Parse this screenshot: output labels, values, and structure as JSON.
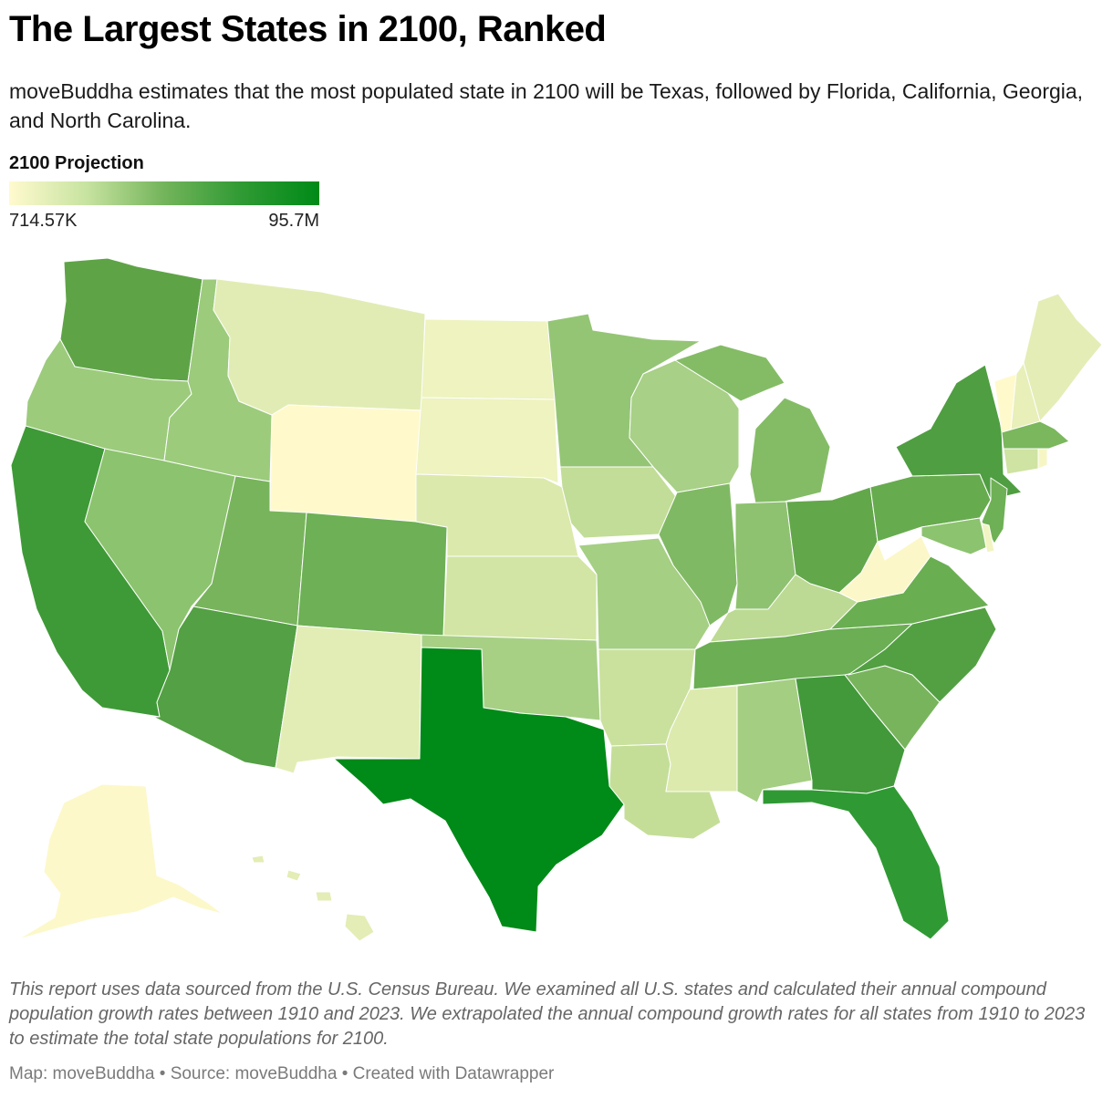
{
  "title": "The Largest States in 2100, Ranked",
  "subtitle": "moveBuddha estimates that the most populated state in 2100 will be Texas, followed by Florida, California, Georgia, and North Carolina.",
  "legend": {
    "title": "2100 Projection",
    "min_label": "714.57K",
    "max_label": "95.7M",
    "colors": [
      "#fffacf",
      "#c7e3a0",
      "#73b45a",
      "#2f9a33",
      "#008a17"
    ]
  },
  "notes": "This report uses data sourced from the U.S. Census Bureau. We examined all U.S. states and calculated their annual compound population growth rates between 1910 and 2023. We extrapolated the annual compound growth rates for all states from 1910 to 2023 to estimate the total state populations for 2100.",
  "byline": "Map: moveBuddha • Source: moveBuddha • Created with Datawrapper",
  "map": {
    "colors": {
      "WA": "#5ea447",
      "OR": "#9ccb7c",
      "CA": "#3e9a36",
      "NV": "#8cc36e",
      "ID": "#9ccb7c",
      "MT": "#e1ecb4",
      "WY": "#fff9cc",
      "UT": "#78b45c",
      "AZ": "#54a044",
      "CO": "#6db055",
      "NM": "#e2edb5",
      "ND": "#eef3c0",
      "SD": "#eef3c0",
      "NE": "#dbe9ac",
      "KS": "#d2e5a4",
      "OK": "#a7d085",
      "TX": "#008a17",
      "MN": "#94c575",
      "IA": "#c2dd97",
      "MO": "#a5cf83",
      "AR": "#c9e19d",
      "LA": "#c4de98",
      "WI": "#a8d086",
      "IL": "#80b963",
      "MI": "#84bc66",
      "IN": "#8fc270",
      "OH": "#63a74b",
      "KY": "#bcda93",
      "TN": "#6bae53",
      "MS": "#dceaae",
      "AL": "#a4ce82",
      "GA": "#42993a",
      "FL": "#2f9a33",
      "SC": "#78b45c",
      "NC": "#52a042",
      "VA": "#6aae52",
      "WV": "#fbf7c8",
      "PA": "#67ab4f",
      "NY": "#4f9e41",
      "NJ": "#6eb055",
      "DE": "#f2f4c2",
      "MD": "#8cc36e",
      "CT": "#cfe3a2",
      "RI": "#f6f6c5",
      "MA": "#7ab75d",
      "VT": "#fff9cc",
      "NH": "#e8efb9",
      "ME": "#e4edb6",
      "AK": "#fcf8c9",
      "HI": "#e3edb5"
    }
  }
}
